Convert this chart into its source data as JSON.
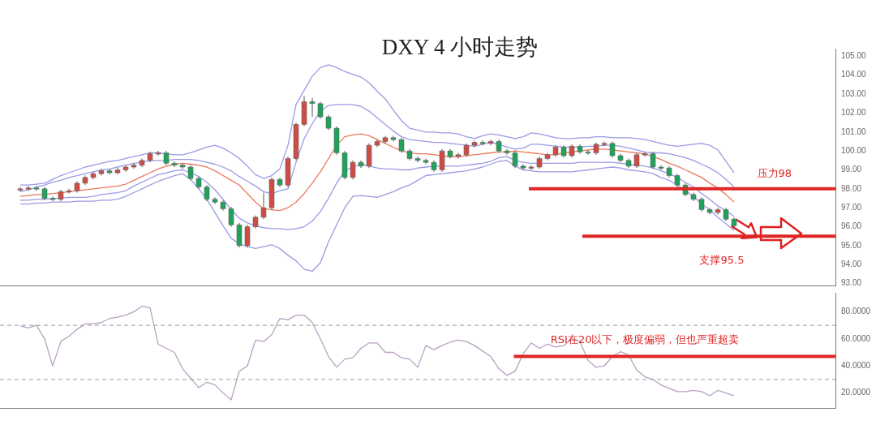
{
  "chart_data": [
    {
      "type": "candlestick",
      "title": "DXY  4 小时走势",
      "tick_labels": "y",
      "grid": false,
      "legend": false,
      "categories": [
        null,
        null,
        null,
        null,
        null,
        null,
        null,
        null,
        null,
        null,
        null,
        null,
        null,
        null,
        null,
        null,
        null,
        null,
        null,
        null,
        null,
        null,
        null,
        null,
        null,
        null,
        null,
        null,
        null,
        null,
        null,
        null,
        null,
        null,
        null,
        null,
        null,
        null,
        null,
        null,
        null,
        null,
        null,
        null,
        null,
        null,
        null,
        null,
        null,
        null,
        null,
        null,
        null,
        null,
        null,
        null,
        null,
        null,
        null,
        null,
        null,
        null,
        null,
        null,
        null,
        null,
        null,
        null,
        null,
        null,
        null,
        null,
        null,
        null,
        null,
        null,
        null,
        null,
        null,
        null,
        null,
        null,
        null,
        null,
        null,
        null,
        null,
        null,
        null,
        null,
        null,
        null,
        null,
        null,
        null,
        null,
        null,
        null,
        null,
        null,
        null,
        null,
        null
      ],
      "ohlc": [
        null,
        null,
        [
          97.95,
          98.1,
          97.85,
          98.0
        ],
        [
          98.0,
          98.15,
          97.9,
          98.05
        ],
        [
          98.05,
          98.15,
          97.9,
          98.0
        ],
        [
          98.0,
          98.1,
          97.4,
          97.5
        ],
        [
          97.5,
          97.6,
          97.35,
          97.45
        ],
        [
          97.45,
          97.95,
          97.35,
          97.85
        ],
        [
          97.85,
          98.0,
          97.75,
          97.9
        ],
        [
          97.9,
          98.4,
          97.8,
          98.3
        ],
        [
          98.3,
          98.7,
          98.2,
          98.6
        ],
        [
          98.6,
          98.9,
          98.5,
          98.8
        ],
        [
          98.8,
          99.05,
          98.7,
          98.95
        ],
        [
          98.95,
          99.05,
          98.75,
          98.85
        ],
        [
          98.85,
          99.1,
          98.75,
          99.0
        ],
        [
          99.0,
          99.25,
          98.9,
          99.15
        ],
        [
          99.15,
          99.35,
          99.05,
          99.25
        ],
        [
          99.25,
          99.6,
          99.15,
          99.5
        ],
        [
          99.5,
          99.95,
          99.4,
          99.85
        ],
        [
          99.85,
          100.0,
          99.75,
          99.9
        ],
        [
          99.9,
          100.0,
          99.25,
          99.35
        ],
        [
          99.35,
          99.45,
          99.15,
          99.25
        ],
        [
          99.25,
          99.35,
          99.05,
          99.15
        ],
        [
          99.15,
          99.25,
          98.45,
          98.55
        ],
        [
          98.55,
          98.65,
          98.0,
          98.1
        ],
        [
          98.1,
          98.2,
          97.35,
          97.45
        ],
        [
          97.45,
          97.55,
          97.2,
          97.3
        ],
        [
          97.3,
          97.4,
          96.85,
          96.95
        ],
        [
          96.95,
          97.05,
          96.0,
          96.1
        ],
        [
          96.1,
          96.2,
          94.9,
          95.0
        ],
        [
          95.0,
          96.1,
          94.9,
          96.0
        ],
        [
          96.0,
          96.6,
          95.9,
          96.5
        ],
        [
          96.5,
          97.8,
          96.4,
          97.0
        ],
        [
          97.0,
          98.6,
          96.9,
          98.5
        ],
        [
          98.5,
          98.6,
          98.1,
          98.2
        ],
        [
          98.2,
          99.7,
          98.1,
          99.6
        ],
        [
          99.6,
          101.5,
          99.5,
          101.4
        ],
        [
          101.4,
          102.9,
          101.3,
          102.6
        ],
        [
          102.6,
          102.8,
          101.8,
          102.5
        ],
        [
          102.5,
          102.6,
          101.7,
          101.8
        ],
        [
          101.8,
          101.9,
          101.1,
          101.2
        ],
        [
          101.2,
          101.3,
          99.8,
          99.9
        ],
        [
          99.9,
          100.0,
          98.5,
          98.6
        ],
        [
          98.6,
          99.5,
          98.5,
          99.4
        ],
        [
          99.4,
          99.5,
          99.1,
          99.2
        ],
        [
          99.2,
          100.4,
          99.1,
          100.3
        ],
        [
          100.3,
          100.6,
          100.2,
          100.5
        ],
        [
          100.5,
          100.8,
          100.4,
          100.7
        ],
        [
          100.7,
          100.8,
          100.5,
          100.6
        ],
        [
          100.6,
          100.7,
          99.9,
          100.0
        ],
        [
          100.0,
          100.1,
          99.5,
          99.6
        ],
        [
          99.6,
          99.7,
          99.4,
          99.5
        ],
        [
          99.5,
          99.6,
          99.3,
          99.4
        ],
        [
          99.4,
          99.5,
          98.9,
          99.0
        ],
        [
          99.0,
          100.1,
          98.9,
          100.0
        ],
        [
          100.0,
          100.1,
          99.6,
          99.7
        ],
        [
          99.7,
          99.9,
          99.6,
          99.8
        ],
        [
          99.8,
          100.4,
          99.7,
          100.3
        ],
        [
          100.3,
          100.55,
          100.2,
          100.45
        ],
        [
          100.45,
          100.55,
          100.3,
          100.4
        ],
        [
          100.4,
          100.6,
          100.3,
          100.5
        ],
        [
          100.5,
          100.6,
          99.9,
          100.0
        ],
        [
          100.0,
          100.1,
          99.8,
          99.9
        ],
        [
          99.9,
          100.0,
          99.1,
          99.2
        ],
        [
          99.2,
          99.3,
          99.0,
          99.1
        ],
        [
          99.1,
          99.25,
          99.0,
          99.15
        ],
        [
          99.15,
          99.7,
          99.05,
          99.6
        ],
        [
          99.6,
          99.9,
          99.5,
          99.8
        ],
        [
          99.8,
          100.3,
          99.7,
          100.2
        ],
        [
          100.2,
          100.3,
          99.65,
          99.75
        ],
        [
          99.75,
          100.35,
          99.65,
          100.25
        ],
        [
          100.25,
          100.35,
          99.85,
          99.95
        ],
        [
          99.95,
          100.05,
          99.8,
          99.9
        ],
        [
          99.9,
          100.45,
          99.8,
          100.35
        ],
        [
          100.35,
          100.5,
          100.25,
          100.4
        ],
        [
          100.4,
          100.5,
          99.65,
          99.75
        ],
        [
          99.75,
          99.85,
          99.4,
          99.5
        ],
        [
          99.5,
          99.6,
          99.1,
          99.2
        ],
        [
          99.2,
          99.9,
          99.1,
          99.8
        ],
        [
          99.8,
          99.95,
          99.7,
          99.85
        ],
        [
          99.85,
          99.95,
          99.05,
          99.15
        ],
        [
          99.15,
          99.25,
          99.0,
          99.1
        ],
        [
          99.1,
          99.2,
          98.6,
          98.7
        ],
        [
          98.7,
          98.8,
          98.1,
          98.2
        ],
        [
          98.2,
          98.3,
          97.6,
          97.7
        ],
        [
          97.7,
          97.8,
          97.35,
          97.45
        ],
        [
          97.45,
          97.55,
          96.8,
          96.9
        ],
        [
          96.9,
          97.0,
          96.65,
          96.75
        ],
        [
          96.75,
          97.0,
          96.65,
          96.9
        ],
        [
          96.9,
          97.0,
          96.3,
          96.4
        ],
        [
          96.4,
          96.5,
          95.95,
          96.05
        ],
        null,
        null,
        null,
        null,
        null,
        null,
        null,
        null,
        null,
        null,
        null,
        null
      ],
      "series": [
        {
          "type": "line",
          "color": "#9a9ae6",
          "values": [
            null,
            null,
            98.2,
            98.2,
            98.25,
            98.3,
            98.5,
            98.7,
            98.85,
            99.0,
            99.15,
            99.25,
            99.35,
            99.45,
            99.5,
            99.6,
            99.7,
            99.8,
            99.9,
            99.9,
            99.85,
            99.8,
            99.8,
            99.9,
            100.05,
            100.2,
            100.3,
            100.15,
            99.9,
            99.6,
            99.2,
            98.75,
            98.55,
            98.7,
            99.05,
            100.3,
            102.45,
            103.2,
            103.95,
            104.4,
            104.55,
            104.4,
            104.2,
            104.05,
            103.9,
            103.6,
            103.15,
            102.75,
            102.15,
            101.6,
            101.2,
            101.1,
            101.0,
            101.0,
            100.95,
            100.95,
            100.9,
            100.75,
            100.65,
            100.8,
            100.9,
            100.85,
            100.75,
            100.65,
            100.75,
            100.95,
            100.9,
            100.8,
            100.7,
            100.65,
            100.65,
            100.7,
            100.7,
            100.75,
            100.75,
            100.7,
            100.7,
            100.7,
            100.65,
            100.6,
            100.5,
            100.4,
            100.3,
            100.25,
            100.3,
            100.35,
            100.4,
            100.3,
            100.05,
            99.45,
            98.85,
            null,
            null,
            null,
            null,
            null,
            null,
            null,
            null,
            null,
            null,
            null,
            null
          ]
        },
        {
          "type": "line",
          "color": "#9a9ae6",
          "values": [
            null,
            null,
            97.85,
            97.95,
            98.1,
            98.2,
            98.35,
            98.45,
            98.6,
            98.7,
            98.8,
            98.9,
            99.0,
            99.05,
            99.15,
            99.25,
            99.35,
            99.4,
            99.5,
            99.5,
            99.5,
            99.55,
            99.55,
            99.55,
            99.5,
            99.4,
            99.3,
            99.15,
            98.95,
            98.65,
            98.4,
            98.15,
            97.85,
            97.75,
            97.9,
            98.0,
            99.4,
            100.65,
            101.45,
            102.1,
            102.4,
            102.45,
            102.45,
            102.45,
            102.35,
            102.1,
            101.75,
            101.4,
            101.05,
            100.75,
            100.6,
            100.55,
            100.5,
            100.45,
            100.45,
            100.4,
            100.35,
            100.3,
            100.25,
            100.35,
            100.45,
            100.35,
            100.2,
            100.1,
            100.15,
            100.35,
            100.35,
            100.3,
            100.25,
            100.2,
            100.2,
            100.2,
            100.25,
            100.25,
            100.3,
            100.3,
            100.25,
            100.15,
            100.05,
            99.95,
            99.9,
            99.9,
            99.85,
            99.75,
            99.65,
            99.5,
            99.3,
            99.1,
            98.85,
            98.5,
            98.1,
            null,
            null,
            null,
            null,
            null,
            null,
            null,
            null,
            null,
            null,
            null,
            null
          ]
        },
        {
          "type": "line",
          "color": "#e8795c",
          "values": [
            null,
            null,
            97.6,
            97.65,
            97.7,
            97.7,
            97.75,
            97.8,
            97.85,
            97.9,
            97.95,
            98.0,
            98.05,
            98.1,
            98.15,
            98.25,
            98.45,
            98.65,
            98.85,
            99.05,
            99.2,
            99.3,
            99.35,
            99.3,
            99.25,
            99.15,
            98.95,
            98.7,
            98.45,
            98.2,
            97.75,
            97.3,
            96.95,
            96.9,
            96.85,
            97.0,
            97.3,
            97.75,
            98.3,
            98.9,
            99.6,
            100.3,
            100.75,
            100.85,
            100.9,
            100.8,
            100.6,
            100.4,
            100.2,
            100.0,
            99.9,
            99.85,
            99.85,
            99.8,
            99.75,
            99.7,
            99.7,
            99.75,
            99.8,
            99.85,
            99.9,
            99.95,
            99.95,
            100.0,
            99.95,
            99.9,
            99.85,
            99.8,
            99.8,
            99.9,
            99.95,
            100.0,
            100.05,
            100.1,
            100.1,
            100.05,
            100.0,
            99.95,
            99.9,
            99.85,
            99.7,
            99.55,
            99.35,
            99.2,
            99.0,
            98.8,
            98.6,
            98.3,
            98.05,
            97.7,
            97.3,
            null,
            null,
            null,
            null,
            null,
            null,
            null,
            null,
            null,
            null,
            null,
            null
          ]
        },
        {
          "type": "line",
          "color": "#9a9ae6",
          "values": [
            null,
            null,
            97.4,
            97.4,
            97.45,
            97.45,
            97.5,
            97.5,
            97.55,
            97.55,
            97.55,
            97.6,
            97.7,
            97.75,
            97.8,
            97.9,
            98.15,
            98.35,
            98.55,
            98.75,
            98.85,
            98.95,
            99.0,
            98.85,
            98.65,
            98.35,
            97.95,
            97.45,
            96.9,
            96.45,
            96.2,
            96.05,
            95.95,
            95.9,
            95.9,
            95.85,
            95.9,
            96.0,
            96.3,
            96.8,
            97.5,
            98.3,
            98.95,
            99.15,
            99.3,
            99.2,
            99.1,
            99.05,
            99.05,
            99.0,
            99.0,
            99.1,
            99.15,
            99.2,
            99.2,
            99.2,
            99.2,
            99.25,
            99.3,
            99.35,
            99.45,
            99.65,
            99.7,
            99.5,
            99.4,
            99.35,
            99.35,
            99.35,
            99.35,
            99.35,
            99.35,
            99.4,
            99.4,
            99.4,
            99.4,
            99.4,
            99.35,
            99.3,
            99.25,
            99.2,
            99.1,
            98.95,
            98.8,
            98.6,
            98.35,
            98.1,
            97.75,
            97.45,
            97.1,
            96.85,
            96.55,
            null,
            null,
            null,
            null,
            null,
            null,
            null,
            null,
            null,
            null,
            null,
            null
          ]
        },
        {
          "type": "line",
          "color": "#9a9ae6",
          "values": [
            null,
            null,
            97.2,
            97.2,
            97.25,
            97.25,
            97.3,
            97.3,
            97.3,
            97.35,
            97.35,
            97.35,
            97.4,
            97.4,
            97.45,
            97.6,
            97.8,
            98.0,
            98.2,
            98.4,
            98.55,
            98.7,
            98.8,
            98.5,
            98.0,
            97.45,
            96.75,
            96.05,
            95.4,
            95.1,
            94.95,
            94.85,
            94.95,
            95.05,
            94.85,
            94.5,
            94.2,
            93.75,
            93.65,
            94.1,
            95.2,
            96.1,
            97.0,
            97.6,
            97.65,
            97.6,
            97.55,
            97.7,
            97.85,
            98.05,
            98.2,
            98.45,
            98.7,
            98.75,
            98.8,
            98.85,
            98.9,
            98.95,
            99.05,
            99.15,
            99.3,
            99.45,
            99.5,
            99.2,
            99.0,
            98.95,
            98.9,
            98.9,
            98.9,
            98.9,
            98.9,
            98.95,
            99.0,
            99.05,
            99.1,
            99.15,
            99.1,
            99.0,
            98.95,
            98.9,
            98.8,
            98.6,
            98.45,
            98.2,
            97.9,
            97.6,
            97.2,
            96.9,
            96.5,
            96.15,
            95.8,
            null,
            null,
            null,
            null,
            null,
            null,
            null,
            null,
            null,
            null,
            null,
            null
          ]
        }
      ],
      "ylim": [
        92.9,
        105.4
      ],
      "yticks": [
        {
          "value": 93,
          "label": "93.00"
        },
        {
          "value": 94,
          "label": "94.00"
        },
        {
          "value": 95,
          "label": "95.00"
        },
        {
          "value": 96,
          "label": "96.00"
        },
        {
          "value": 97,
          "label": "97.00"
        },
        {
          "value": 98,
          "label": "98.00"
        },
        {
          "value": 99,
          "label": "99.00"
        },
        {
          "value": 100,
          "label": "100.00"
        },
        {
          "value": 101,
          "label": "101.00"
        },
        {
          "value": 102,
          "label": "102.00"
        },
        {
          "value": 103,
          "label": "103.00"
        },
        {
          "value": 104,
          "label": "104.00"
        },
        {
          "value": 105,
          "label": "105.00"
        }
      ],
      "ref_lines": [
        {
          "axis": "y",
          "value": 98,
          "label": "压力98",
          "color": "#e02525",
          "line_style": "solid"
        },
        {
          "axis": "y",
          "value": 95.5,
          "label": "支撑95.5",
          "color": "#e02525",
          "line_style": "solid"
        }
      ]
    },
    {
      "type": "line",
      "tick_labels": "y",
      "grid": false,
      "legend": false,
      "marker": "none",
      "categories": [
        null,
        null,
        null,
        null,
        null,
        null,
        null,
        null,
        null,
        null,
        null,
        null,
        null,
        null,
        null,
        null,
        null,
        null,
        null,
        null,
        null,
        null,
        null,
        null,
        null,
        null,
        null,
        null,
        null,
        null,
        null,
        null,
        null,
        null,
        null,
        null,
        null,
        null,
        null,
        null,
        null,
        null,
        null,
        null,
        null,
        null,
        null,
        null,
        null,
        null,
        null,
        null,
        null,
        null,
        null,
        null,
        null,
        null,
        null,
        null,
        null,
        null,
        null,
        null,
        null,
        null,
        null,
        null,
        null,
        null,
        null,
        null,
        null,
        null,
        null,
        null,
        null,
        null,
        null,
        null,
        null,
        null,
        null,
        null,
        null,
        null,
        null,
        null,
        null,
        null,
        null,
        null,
        null,
        null,
        null,
        null,
        null,
        null,
        null,
        null,
        null,
        null,
        null
      ],
      "series": [
        {
          "color": "#b9a0c2",
          "values": [
            null,
            null,
            69.5,
            68,
            70,
            60,
            40,
            58,
            62,
            67,
            71,
            71,
            72,
            75,
            76,
            77.5,
            80,
            84,
            83,
            56,
            53,
            50,
            38,
            31,
            24,
            28,
            26,
            20,
            15,
            36,
            40,
            59,
            58,
            63,
            75,
            74,
            77.5,
            77.5,
            72,
            60,
            47,
            39,
            45,
            46,
            53,
            57,
            57,
            50,
            50,
            46,
            45,
            39,
            55,
            52,
            55,
            57.5,
            59,
            58,
            55,
            51,
            47,
            38,
            33,
            36,
            49,
            57,
            53,
            56,
            54,
            55,
            60,
            58,
            44,
            39,
            40,
            47,
            50.5,
            48,
            37,
            32,
            30,
            26,
            23.5,
            21,
            21,
            22,
            21,
            18,
            22,
            20,
            18,
            null,
            null,
            null,
            null,
            null,
            null,
            null,
            null,
            null,
            null,
            null,
            null
          ]
        }
      ],
      "ylim": [
        9,
        94
      ],
      "yticks": [
        {
          "value": 20,
          "label": "20.0000"
        },
        {
          "value": 40,
          "label": "40.0000"
        },
        {
          "value": 60,
          "label": "60.0000"
        },
        {
          "value": 80,
          "label": "80.0000"
        }
      ],
      "ref_lines": [
        {
          "axis": "y",
          "value": 70,
          "color": "#999999",
          "line_style": "dashed"
        },
        {
          "axis": "y",
          "value": 30,
          "color": "#999999",
          "line_style": "dashed"
        },
        {
          "axis": "y",
          "value": 47,
          "label": "RSI在20以下，极度偏弱，但也严重超卖",
          "color": "#e02525",
          "line_style": "solid"
        }
      ]
    }
  ]
}
